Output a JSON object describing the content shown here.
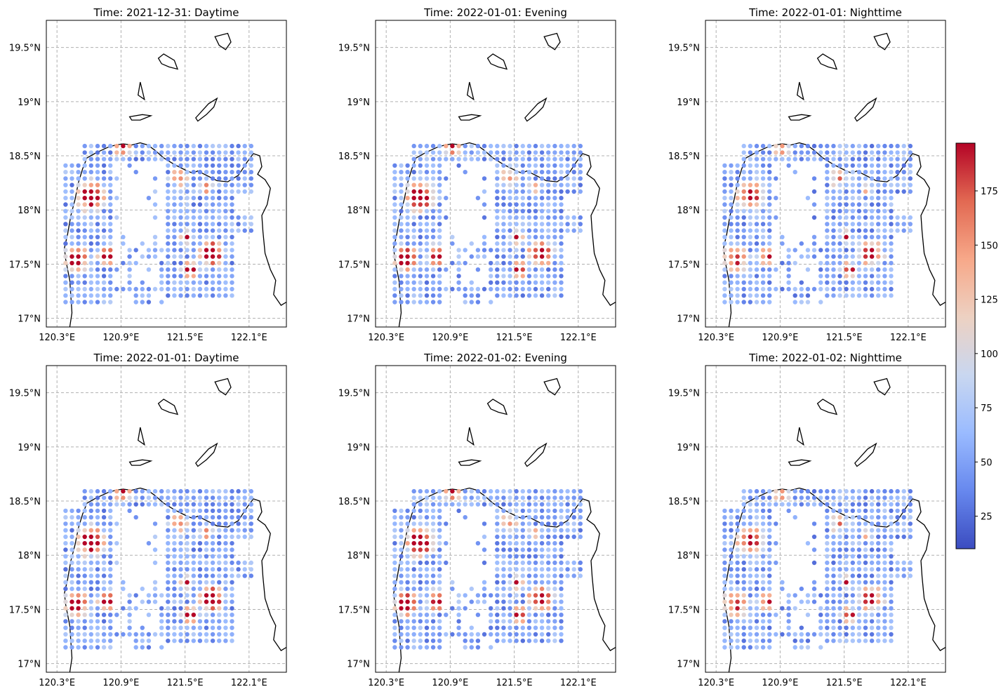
{
  "panels": [
    {
      "title": "Time: 2021-12-31: Daytime",
      "variant": 0
    },
    {
      "title": "Time: 2022-01-01: Evening",
      "variant": 1
    },
    {
      "title": "Time: 2022-01-01: Nighttime",
      "variant": 2
    },
    {
      "title": "Time: 2022-01-01: Daytime",
      "variant": 0
    },
    {
      "title": "Time: 2022-01-02: Evening",
      "variant": 1
    },
    {
      "title": "Time: 2022-01-02: Nighttime",
      "variant": 2
    }
  ],
  "map": {
    "lon_range": [
      120.2,
      122.45
    ],
    "lat_range": [
      16.92,
      19.75
    ],
    "lon_ticks": [
      {
        "value": 120.3,
        "label": "120.3°E"
      },
      {
        "value": 120.9,
        "label": "120.9°E"
      },
      {
        "value": 121.5,
        "label": "121.5°E"
      },
      {
        "value": 122.1,
        "label": "122.1°E"
      }
    ],
    "lat_ticks": [
      {
        "value": 19.5,
        "label": "19.5°N"
      },
      {
        "value": 19.0,
        "label": "19°N"
      },
      {
        "value": 18.5,
        "label": "18.5°N"
      },
      {
        "value": 18.0,
        "label": "18°N"
      },
      {
        "value": 17.5,
        "label": "17.5°N"
      },
      {
        "value": 17.0,
        "label": "17°N"
      }
    ]
  },
  "colorbar": {
    "colormap": "coolwarm",
    "min": 10,
    "max": 197,
    "ticks": [
      25,
      50,
      75,
      100,
      125,
      150,
      175
    ],
    "colors": [
      "#3b4cc0",
      "#6788ee",
      "#9abbff",
      "#c9d7f0",
      "#edd1c2",
      "#f7a889",
      "#e26952",
      "#b40426"
    ]
  }
}
